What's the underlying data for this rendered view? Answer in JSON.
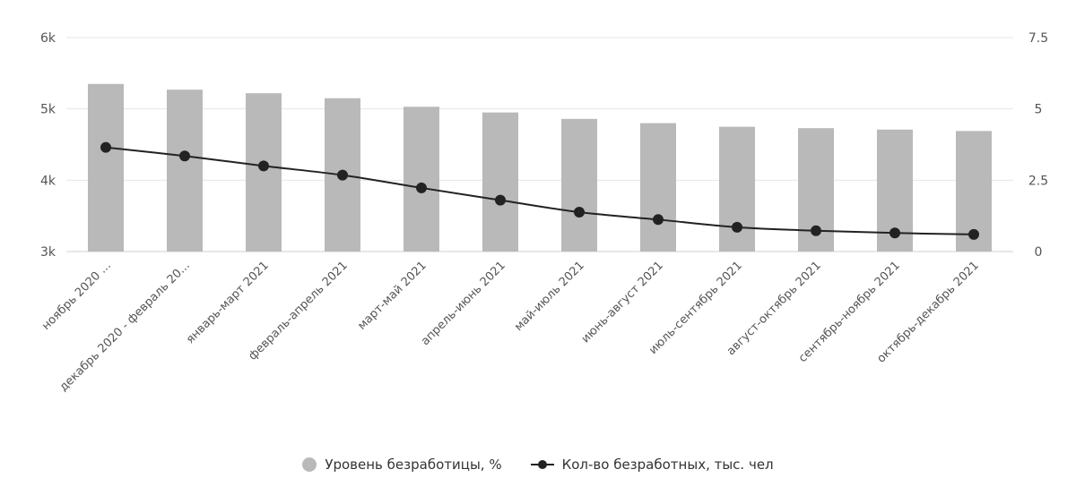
{
  "chart_data": {
    "type": "bar",
    "categories": [
      "ноябрь 2020 ...",
      "декабрь 2020 - февраль 20...",
      "январь-март 2021",
      "февраль-апрель 2021",
      "март-май 2021",
      "апрель-июнь 2021",
      "май-июль 2021",
      "июнь-август 2021",
      "июль-сентябрь 2021",
      "август-октябрь 2021",
      "сентябрь-ноябрь 2021",
      "октябрь-декабрь 2021"
    ],
    "series": [
      {
        "name": "Уровень безработицы, %",
        "type": "bar",
        "axis": "left",
        "color": "#b9b9b9",
        "values": [
          5350,
          5270,
          5220,
          5150,
          5030,
          4950,
          4860,
          4800,
          4750,
          4730,
          4710,
          4690
        ]
      },
      {
        "name": "Кол-во безработных, тыс. чел",
        "type": "line",
        "axis": "right",
        "color": "#222222",
        "values": [
          3.65,
          3.35,
          3.0,
          2.68,
          2.23,
          1.8,
          1.38,
          1.12,
          0.85,
          0.73,
          0.65,
          0.6
        ]
      }
    ],
    "y_left": {
      "range": [
        3000,
        6000
      ],
      "ticks": [
        "3k",
        "4k",
        "5k",
        "6k"
      ]
    },
    "y_right": {
      "range": [
        0,
        7.5
      ],
      "ticks": [
        "0",
        "2.5",
        "5",
        "7.5"
      ]
    },
    "grid": true,
    "legend_position": "bottom-center"
  }
}
